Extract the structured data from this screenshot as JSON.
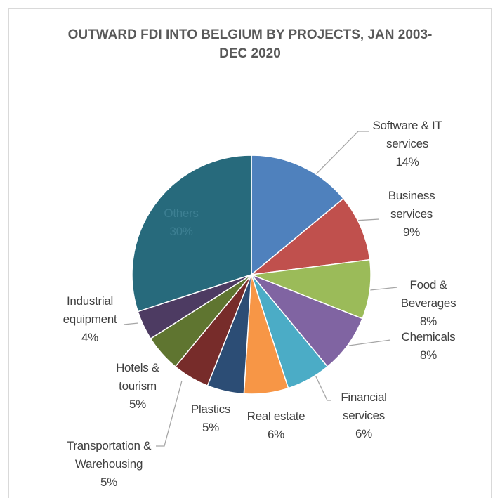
{
  "chart_data": {
    "type": "pie",
    "title": "OUTWARD FDI INTO BELGIUM BY PROJECTS, JAN 2003-DEC 2020",
    "categories": [
      "Software & IT services",
      "Business services",
      "Food & Beverages",
      "Chemicals",
      "Financial services",
      "Real estate",
      "Plastics",
      "Transportation & Warehousing",
      "Hotels & tourism",
      "Industrial equipment",
      "Others"
    ],
    "values": [
      14,
      9,
      8,
      8,
      6,
      6,
      5,
      5,
      5,
      4,
      30
    ],
    "value_labels": [
      "14%",
      "9%",
      "8%",
      "8%",
      "6%",
      "6%",
      "5%",
      "5%",
      "5%",
      "4%",
      "30%"
    ],
    "colors": [
      "#4f81bd",
      "#c0504d",
      "#9bbb59",
      "#8064a2",
      "#4bacc6",
      "#f79646",
      "#2c4d75",
      "#772c2a",
      "#5f7530",
      "#4d3b62",
      "#276a7c"
    ]
  }
}
